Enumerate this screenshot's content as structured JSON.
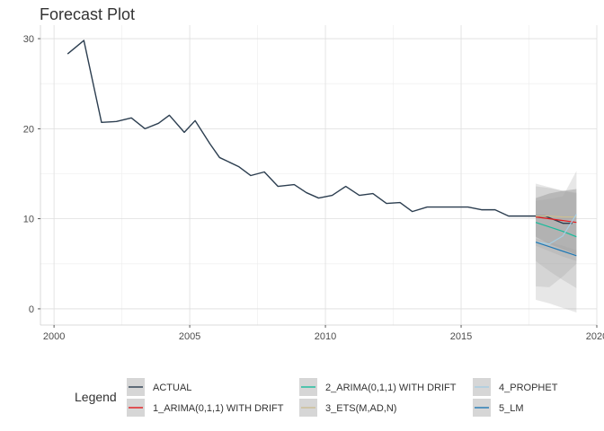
{
  "chart_data": {
    "type": "line",
    "title": "Forecast Plot",
    "xlabel": "",
    "ylabel": "",
    "xlim": [
      1999.5,
      2020
    ],
    "ylim": [
      -1.8,
      31.5
    ],
    "x_ticks": [
      2000,
      2005,
      2010,
      2015,
      2020
    ],
    "x_tick_labels": [
      "2000",
      "2005",
      "2010",
      "2015",
      "2020"
    ],
    "y_ticks": [
      0,
      10,
      20,
      30
    ],
    "y_tick_labels": [
      "0",
      "10",
      "20",
      "30"
    ],
    "grid": true,
    "legend": {
      "title": "Legend",
      "position": "bottom"
    },
    "series": [
      {
        "name": "ACTUAL",
        "color": "#2c3e50",
        "x": [
          2000.5,
          2001.1,
          2001.75,
          2002.3,
          2002.85,
          2003.35,
          2003.85,
          2004.25,
          2004.8,
          2005.2,
          2005.75,
          2006.1,
          2006.8,
          2007.25,
          2007.75,
          2008.25,
          2008.85,
          2009.3,
          2009.75,
          2010.25,
          2010.75,
          2011.25,
          2011.75,
          2012.25,
          2012.75,
          2013.2,
          2013.75,
          2014.25,
          2014.75,
          2015.25,
          2015.75,
          2016.25,
          2016.75,
          2017.25,
          2017.75,
          2018.1,
          2018.75,
          2019.1
        ],
        "values": [
          28.3,
          29.8,
          20.7,
          20.8,
          21.2,
          20.0,
          20.6,
          21.5,
          19.6,
          20.9,
          18.3,
          16.8,
          15.8,
          14.8,
          15.2,
          13.6,
          13.8,
          12.9,
          12.3,
          12.6,
          13.6,
          12.6,
          12.8,
          11.7,
          11.8,
          10.8,
          11.3,
          11.3,
          11.3,
          11.3,
          11.0,
          11.0,
          10.3,
          10.3,
          10.3,
          10.3,
          9.5,
          9.5
        ]
      },
      {
        "name": "1_ARIMA(0,1,1) WITH DRIFT",
        "color": "#e31a1c",
        "x": [
          2017.75,
          2018.25,
          2018.75,
          2019.25
        ],
        "values": [
          10.2,
          10.0,
          9.8,
          9.6
        ],
        "interval_80": [
          [
            8.0,
            12.3
          ],
          [
            7.2,
            12.8
          ],
          [
            6.6,
            13.1
          ],
          [
            6.0,
            13.3
          ]
        ]
      },
      {
        "name": "2_ARIMA(0,1,1) WITH DRIFT",
        "color": "#18bc9c",
        "x": [
          2017.75,
          2018.25,
          2018.75,
          2019.25
        ],
        "values": [
          9.6,
          9.1,
          8.6,
          8.0
        ],
        "interval_95": [
          [
            5.3,
            13.9
          ],
          [
            4.2,
            13.5
          ],
          [
            3.2,
            13.1
          ],
          [
            2.3,
            12.8
          ]
        ]
      },
      {
        "name": "3_ETS(M,AD,N)",
        "color": "#ccbe93",
        "x": [
          2017.75,
          2018.25,
          2018.75,
          2019.25
        ],
        "values": [
          10.3,
          10.3,
          10.2,
          10.2
        ],
        "interval_95": [
          [
            2.5,
            12.0
          ],
          [
            2.4,
            12.2
          ],
          [
            3.6,
            12.5
          ],
          [
            5.0,
            15.3
          ]
        ]
      },
      {
        "name": "4_PROPHET",
        "color": "#a6cee3",
        "x": [
          2017.75,
          2018.25,
          2018.75,
          2019.25
        ],
        "values": [
          7.4,
          7.2,
          8.1,
          10.5
        ],
        "interval_95": [
          [
            1.0,
            13.6
          ],
          [
            0.6,
            13.4
          ],
          [
            0.1,
            13.1
          ],
          [
            -0.4,
            12.9
          ]
        ]
      },
      {
        "name": "5_LM",
        "color": "#1f78b4",
        "x": [
          2017.75,
          2018.25,
          2018.75,
          2019.25
        ],
        "values": [
          7.4,
          6.9,
          6.4,
          5.9
        ],
        "interval_95": [
          [
            7.0,
            7.8
          ],
          [
            6.4,
            7.4
          ],
          [
            5.8,
            7.0
          ],
          [
            5.3,
            6.5
          ]
        ]
      }
    ]
  }
}
